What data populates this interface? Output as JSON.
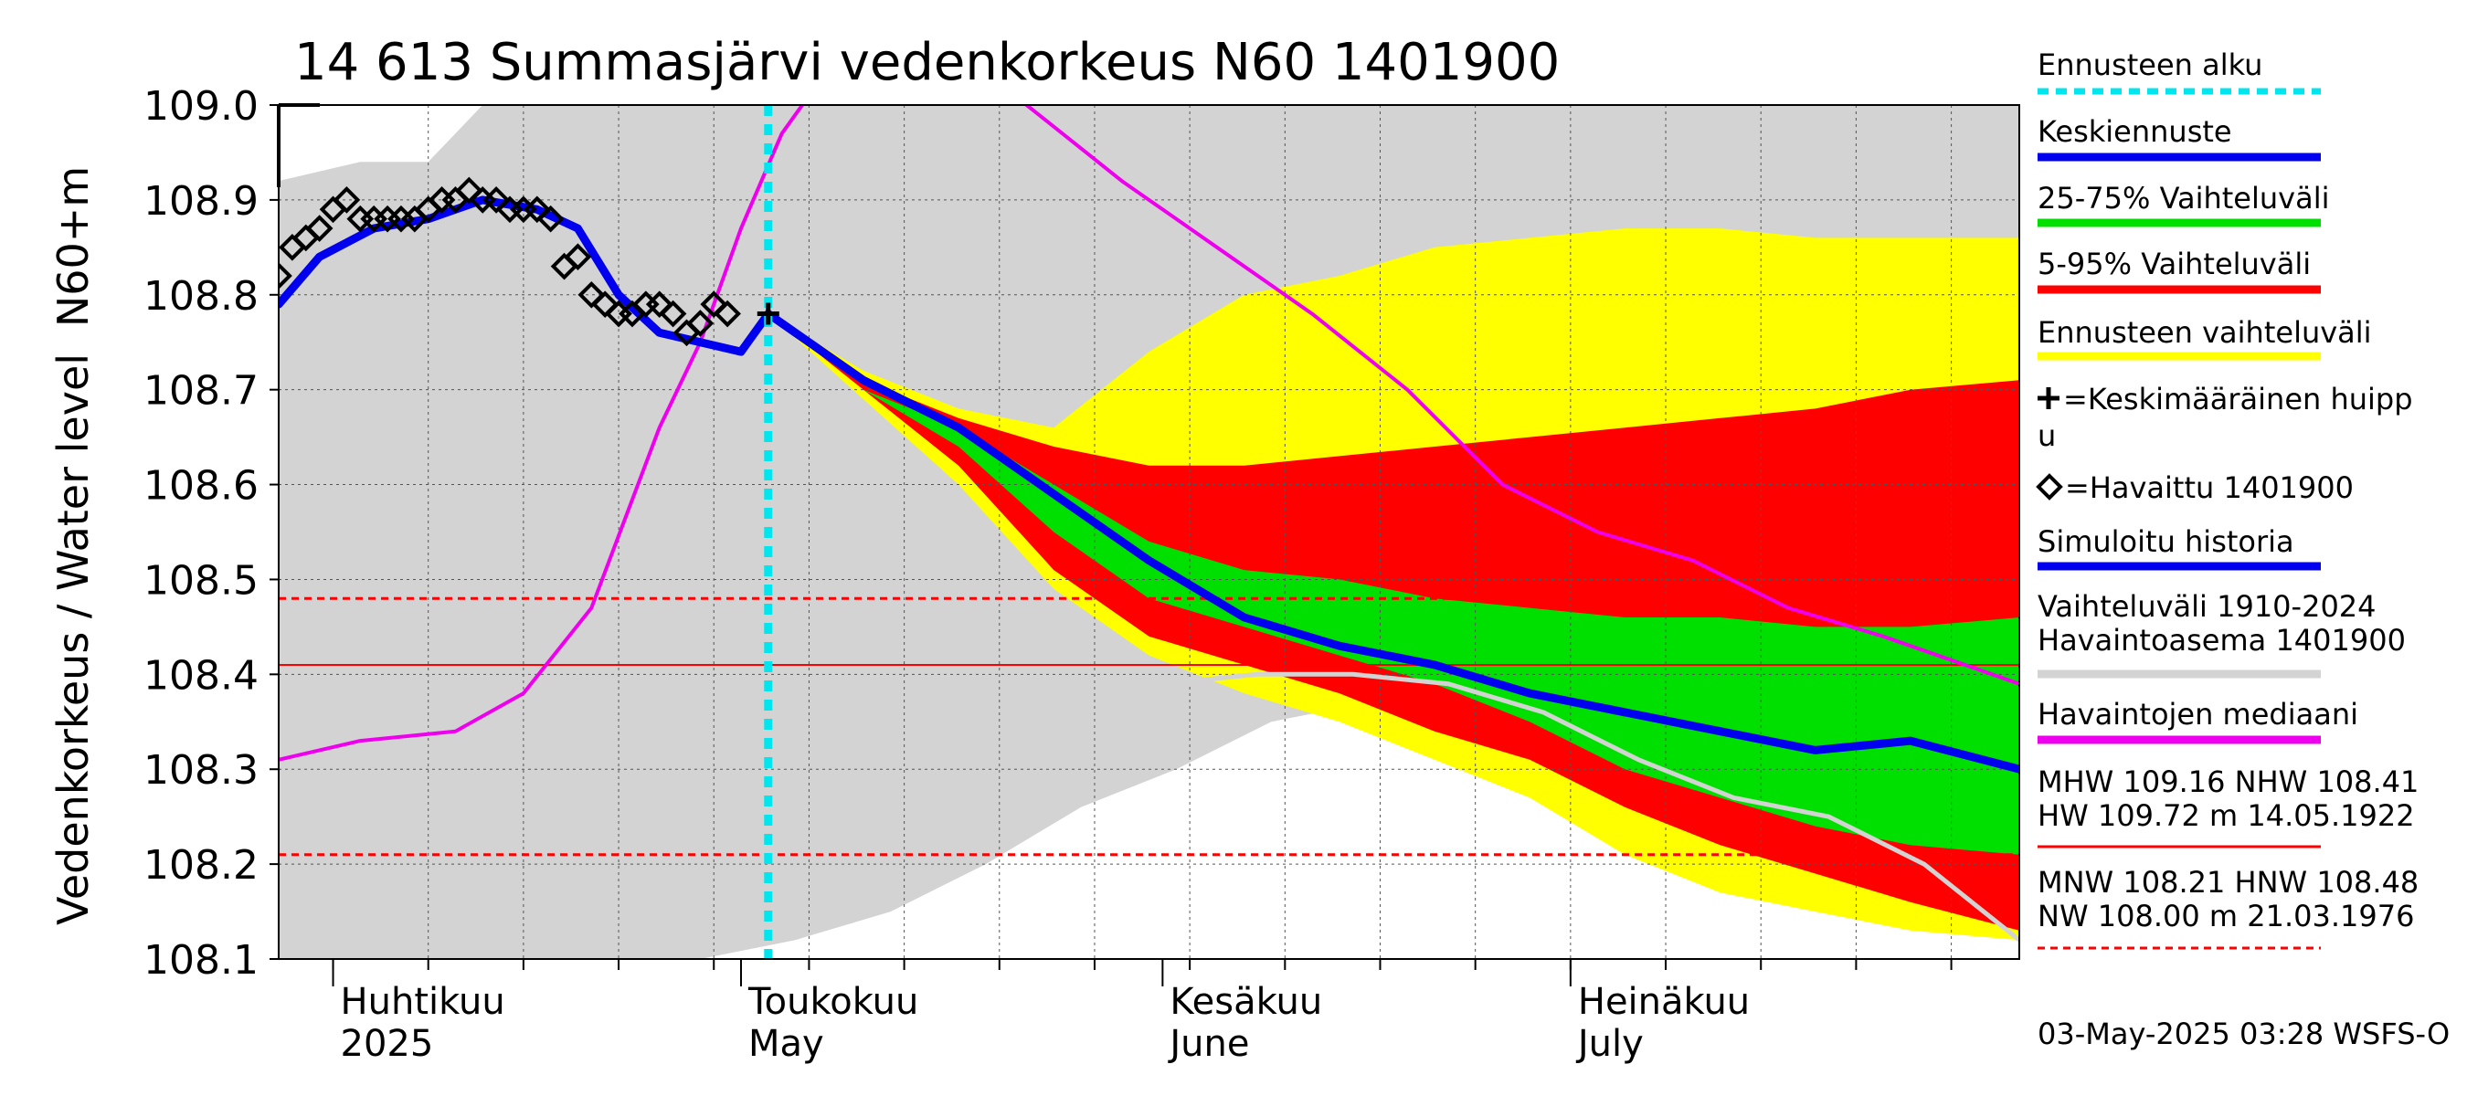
{
  "chart_data": {
    "type": "line",
    "title": "14 613 Summasjärvi vedenkorkeus N60 1401900",
    "ylabel_top": "N60+m",
    "ylabel": "Vedenkorkeus / Water level",
    "ylim": [
      108.1,
      109.0
    ],
    "yticks": [
      "108.1",
      "108.2",
      "108.3",
      "108.4",
      "108.5",
      "108.6",
      "108.7",
      "108.8",
      "108.9",
      "109.0"
    ],
    "x_start": "2025-03-28",
    "x_end": "2025-08-03",
    "forecast_start": "2025-05-03",
    "months": [
      {
        "date": "2025-04-01",
        "label": "Huhtikuu",
        "label2": "2025"
      },
      {
        "date": "2025-05-01",
        "label": "Toukokuu",
        "label2": "May"
      },
      {
        "date": "2025-06-01",
        "label": "Kesäkuu",
        "label2": "June"
      },
      {
        "date": "2025-07-01",
        "label": "Heinäkuu",
        "label2": "July"
      }
    ],
    "reference_lines": [
      {
        "name": "HNW",
        "value": 108.48,
        "style": "dashed",
        "color": "#ff0000"
      },
      {
        "name": "NHW",
        "value": 108.41,
        "style": "solid",
        "color": "#ff0000"
      },
      {
        "name": "MNW",
        "value": 108.21,
        "style": "dashed",
        "color": "#ff0000"
      }
    ],
    "series": [
      {
        "key": "hist_range",
        "type": "band",
        "color": "#d3d3d3",
        "x": [
          "2025-03-28",
          "2025-04-03",
          "2025-04-08",
          "2025-04-12",
          "2025-04-20",
          "2025-04-28",
          "2025-05-05",
          "2025-05-12",
          "2025-05-19",
          "2025-05-26",
          "2025-06-02",
          "2025-06-09",
          "2025-06-16",
          "2025-06-23",
          "2025-06-30",
          "2025-07-07",
          "2025-07-14",
          "2025-07-21",
          "2025-07-28",
          "2025-08-03"
        ],
        "lower": [
          108.1,
          108.1,
          108.1,
          108.1,
          108.1,
          108.1,
          108.12,
          108.15,
          108.2,
          108.26,
          108.3,
          108.35,
          108.37,
          108.38,
          108.38,
          108.38,
          108.38,
          108.38,
          108.38,
          108.38
        ],
        "upper": [
          108.92,
          108.94,
          108.94,
          109.0,
          109.0,
          109.0,
          109.0,
          109.0,
          109.0,
          109.0,
          109.0,
          109.0,
          109.0,
          109.0,
          109.0,
          109.0,
          109.0,
          109.0,
          109.0,
          109.0
        ]
      },
      {
        "key": "forecast_range",
        "type": "band",
        "color": "#ffff00",
        "x": [
          "2025-05-03",
          "2025-05-10",
          "2025-05-17",
          "2025-05-24",
          "2025-05-31",
          "2025-06-07",
          "2025-06-14",
          "2025-06-21",
          "2025-06-28",
          "2025-07-05",
          "2025-07-12",
          "2025-07-19",
          "2025-07-26",
          "2025-08-03"
        ],
        "lower": [
          108.78,
          108.69,
          108.6,
          108.49,
          108.42,
          108.38,
          108.35,
          108.31,
          108.27,
          108.21,
          108.17,
          108.15,
          108.13,
          108.12
        ],
        "upper": [
          108.78,
          108.72,
          108.68,
          108.66,
          108.74,
          108.8,
          108.82,
          108.85,
          108.86,
          108.87,
          108.87,
          108.86,
          108.86,
          108.86
        ]
      },
      {
        "key": "range_5_95",
        "type": "band",
        "color": "#ff0000",
        "x": [
          "2025-05-03",
          "2025-05-10",
          "2025-05-17",
          "2025-05-24",
          "2025-05-31",
          "2025-06-07",
          "2025-06-14",
          "2025-06-21",
          "2025-06-28",
          "2025-07-05",
          "2025-07-12",
          "2025-07-19",
          "2025-07-26",
          "2025-08-03"
        ],
        "lower": [
          108.78,
          108.7,
          108.62,
          108.51,
          108.44,
          108.41,
          108.38,
          108.34,
          108.31,
          108.26,
          108.22,
          108.19,
          108.16,
          108.13
        ],
        "upper": [
          108.78,
          108.71,
          108.67,
          108.64,
          108.62,
          108.62,
          108.63,
          108.64,
          108.65,
          108.66,
          108.67,
          108.68,
          108.7,
          108.71
        ]
      },
      {
        "key": "range_25_75",
        "type": "band",
        "color": "#00e000",
        "x": [
          "2025-05-03",
          "2025-05-10",
          "2025-05-17",
          "2025-05-24",
          "2025-05-31",
          "2025-06-07",
          "2025-06-14",
          "2025-06-21",
          "2025-06-28",
          "2025-07-05",
          "2025-07-12",
          "2025-07-19",
          "2025-07-26",
          "2025-08-03"
        ],
        "lower": [
          108.78,
          108.7,
          108.64,
          108.55,
          108.48,
          108.45,
          108.42,
          108.39,
          108.35,
          108.3,
          108.27,
          108.24,
          108.22,
          108.21
        ],
        "upper": [
          108.78,
          108.7,
          108.66,
          108.6,
          108.54,
          108.51,
          108.5,
          108.48,
          108.47,
          108.46,
          108.46,
          108.45,
          108.45,
          108.46
        ]
      },
      {
        "key": "median_obs",
        "name": "Havaintojen mediaani",
        "type": "line",
        "color": "#ee00ee",
        "x": [
          "2025-03-28",
          "2025-04-03",
          "2025-04-10",
          "2025-04-15",
          "2025-04-20",
          "2025-04-25",
          "2025-04-28",
          "2025-05-01",
          "2025-05-04",
          "2025-05-08",
          "2025-05-15",
          "2025-05-22",
          "2025-05-29",
          "2025-06-05",
          "2025-06-12",
          "2025-06-19",
          "2025-06-26",
          "2025-07-03",
          "2025-07-10",
          "2025-07-17",
          "2025-07-24",
          "2025-08-03"
        ],
        "y": [
          108.31,
          108.33,
          108.34,
          108.38,
          108.47,
          108.66,
          108.75,
          108.87,
          108.97,
          109.05,
          109.07,
          109.0,
          108.92,
          108.85,
          108.78,
          108.7,
          108.6,
          108.55,
          108.52,
          108.47,
          108.44,
          108.39
        ]
      },
      {
        "key": "mean_forecast",
        "name": "Keskiennuste",
        "type": "line",
        "color": "#0000ee",
        "x": [
          "2025-05-03",
          "2025-05-10",
          "2025-05-17",
          "2025-05-24",
          "2025-05-31",
          "2025-06-07",
          "2025-06-14",
          "2025-06-21",
          "2025-06-28",
          "2025-07-05",
          "2025-07-12",
          "2025-07-19",
          "2025-07-26",
          "2025-08-03"
        ],
        "y": [
          108.78,
          108.71,
          108.66,
          108.59,
          108.52,
          108.46,
          108.43,
          108.41,
          108.38,
          108.36,
          108.34,
          108.32,
          108.33,
          108.3
        ]
      },
      {
        "key": "simulated_history",
        "name": "Simuloitu historia",
        "type": "line",
        "color": "#0000ee",
        "x": [
          "2025-03-28",
          "2025-03-31",
          "2025-04-04",
          "2025-04-08",
          "2025-04-12",
          "2025-04-16",
          "2025-04-19",
          "2025-04-22",
          "2025-04-25",
          "2025-04-28",
          "2025-05-01",
          "2025-05-03"
        ],
        "y": [
          108.79,
          108.84,
          108.87,
          108.88,
          108.9,
          108.89,
          108.87,
          108.8,
          108.76,
          108.75,
          108.74,
          108.78
        ]
      },
      {
        "key": "hist_lowest",
        "type": "line",
        "color": "#d3d3d3",
        "x": [
          "2025-06-01",
          "2025-06-08",
          "2025-06-15",
          "2025-06-22",
          "2025-06-29",
          "2025-07-06",
          "2025-07-13",
          "2025-07-20",
          "2025-07-27",
          "2025-08-03"
        ],
        "y": [
          108.39,
          108.4,
          108.4,
          108.39,
          108.36,
          108.31,
          108.27,
          108.25,
          108.2,
          108.12
        ]
      },
      {
        "key": "observed",
        "name": "Havaittu 1401900",
        "type": "scatter",
        "marker": "diamond",
        "color": "#000000",
        "x": [
          "2025-03-28",
          "2025-03-29",
          "2025-03-30",
          "2025-03-31",
          "2025-04-01",
          "2025-04-02",
          "2025-04-03",
          "2025-04-04",
          "2025-04-05",
          "2025-04-06",
          "2025-04-07",
          "2025-04-08",
          "2025-04-09",
          "2025-04-10",
          "2025-04-11",
          "2025-04-12",
          "2025-04-13",
          "2025-04-14",
          "2025-04-15",
          "2025-04-16",
          "2025-04-17",
          "2025-04-18",
          "2025-04-19",
          "2025-04-20",
          "2025-04-21",
          "2025-04-22",
          "2025-04-23",
          "2025-04-24",
          "2025-04-25",
          "2025-04-26",
          "2025-04-27",
          "2025-04-28",
          "2025-04-29",
          "2025-04-30"
        ],
        "y": [
          108.82,
          108.85,
          108.86,
          108.87,
          108.89,
          108.9,
          108.88,
          108.88,
          108.88,
          108.88,
          108.88,
          108.89,
          108.9,
          108.9,
          108.91,
          108.9,
          108.9,
          108.89,
          108.89,
          108.89,
          108.88,
          108.83,
          108.84,
          108.8,
          108.79,
          108.78,
          108.78,
          108.79,
          108.79,
          108.78,
          108.76,
          108.77,
          108.79,
          108.78
        ]
      },
      {
        "key": "mean_peak",
        "name": "Keskimääräinen huippu",
        "type": "scatter",
        "marker": "plus",
        "color": "#000000",
        "x": [
          "2025-05-03"
        ],
        "y": [
          108.78
        ]
      }
    ],
    "legend": [
      {
        "label": "Ennusteen alku",
        "color": "#00e5ee",
        "style": "dotted"
      },
      {
        "label": "Keskiennuste",
        "color": "#0000ee",
        "style": "line"
      },
      {
        "label": "25-75% Vaihteluväli",
        "color": "#00e000",
        "style": "line"
      },
      {
        "label": "5-95% Vaihteluväli",
        "color": "#ff0000",
        "style": "line"
      },
      {
        "label": "Ennusteen vaihteluväli",
        "color": "#ffff00",
        "style": "line"
      },
      {
        "label": "=Keskimääräinen huipp",
        "label2": "u",
        "marker": "plus"
      },
      {
        "label": "=Havaittu 1401900",
        "marker": "diamond"
      },
      {
        "label": "Simuloitu historia",
        "color": "#0000ee",
        "style": "line"
      },
      {
        "label": "Vaihteluväli 1910-2024",
        "label2": " Havaintoasema 1401900",
        "color": "#d3d3d3",
        "style": "line"
      },
      {
        "label": "Havaintojen mediaani",
        "color": "#ee00ee",
        "style": "line"
      },
      {
        "label": "MHW 109.16 NHW 108.41",
        "label2": "HW 109.72 m 14.05.1922",
        "color": "#ff0000",
        "style": "thin"
      },
      {
        "label": "MNW 108.21 HNW 108.48",
        "label2": "NW 108.00 m 21.03.1976",
        "color": "#ff0000",
        "style": "dashed"
      }
    ],
    "footer": "03-May-2025 03:28 WSFS-O"
  }
}
